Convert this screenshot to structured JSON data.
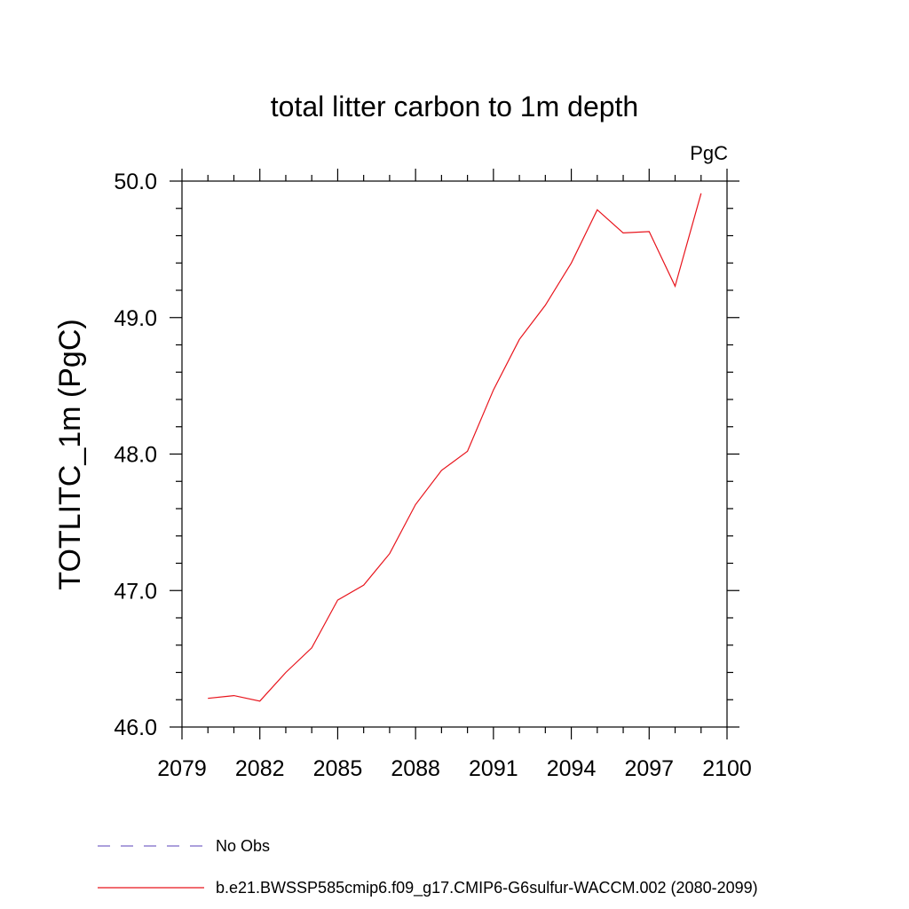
{
  "chart_data": {
    "type": "line",
    "title": "total litter carbon to 1m depth",
    "units_label": "PgC",
    "xlabel": "",
    "ylabel": "TOTLITC_1m  (PgC)",
    "xlim": [
      2079,
      2100
    ],
    "ylim": [
      46.0,
      50.0
    ],
    "x_ticks": [
      2079,
      2082,
      2085,
      2088,
      2091,
      2094,
      2097,
      2100
    ],
    "y_ticks": [
      46.0,
      47.0,
      48.0,
      49.0,
      50.0
    ],
    "y_tick_labels": [
      "46.0",
      "47.0",
      "48.0",
      "49.0",
      "50.0"
    ],
    "grid": false,
    "series": [
      {
        "name": "b.e21.BWSSP585cmip6.f09_g17.CMIP6-G6sulfur-WACCM.002 (2080-2099)",
        "color": "#e8141c",
        "style": "solid",
        "x": [
          2080,
          2081,
          2082,
          2083,
          2084,
          2085,
          2086,
          2087,
          2088,
          2089,
          2090,
          2091,
          2092,
          2093,
          2094,
          2095,
          2096,
          2097,
          2098,
          2099
        ],
        "y": [
          46.21,
          46.23,
          46.19,
          46.4,
          46.58,
          46.93,
          47.04,
          47.27,
          47.63,
          47.88,
          48.02,
          48.47,
          48.84,
          49.09,
          49.4,
          49.79,
          49.62,
          49.63,
          49.23,
          49.91
        ]
      }
    ],
    "legend": {
      "placement": "bottom-left",
      "entries": [
        {
          "label": "No Obs",
          "color": "#7b68c8",
          "style": "dashed"
        },
        {
          "label": "b.e21.BWSSP585cmip6.f09_g17.CMIP6-G6sulfur-WACCM.002 (2080-2099)",
          "color": "#e8141c",
          "style": "solid"
        }
      ]
    }
  }
}
